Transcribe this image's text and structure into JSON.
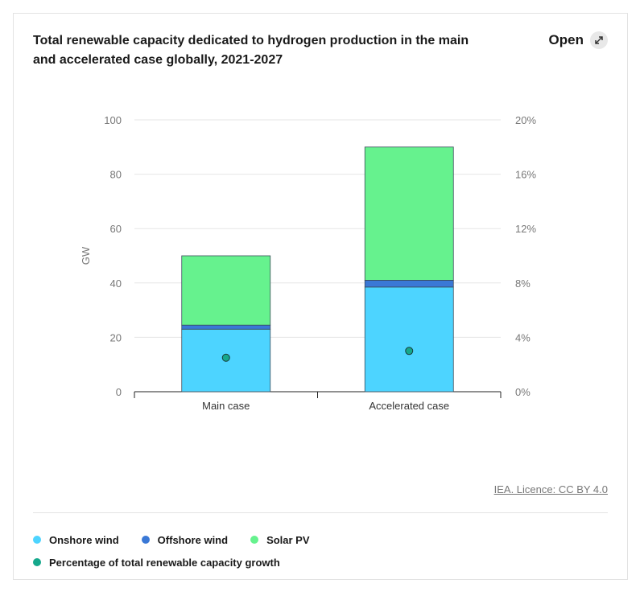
{
  "header": {
    "title": "Total renewable capacity dedicated to hydrogen production in the main and accelerated case globally, 2021-2027",
    "open_label": "Open"
  },
  "footer": {
    "licence": "IEA. Licence: CC BY 4.0"
  },
  "legend": {
    "items": [
      {
        "label": "Onshore wind",
        "color": "#4dd4ff"
      },
      {
        "label": "Offshore wind",
        "color": "#3a78d6"
      },
      {
        "label": "Solar PV",
        "color": "#66f28e"
      },
      {
        "label": "Percentage of total renewable capacity growth",
        "color": "#15a88c"
      }
    ]
  },
  "chart_data": {
    "type": "bar",
    "stacked": true,
    "categories": [
      "Main case",
      "Accelerated case"
    ],
    "series": [
      {
        "name": "Onshore wind",
        "values": [
          23,
          38.5
        ],
        "color": "#4dd4ff"
      },
      {
        "name": "Offshore wind",
        "values": [
          1.5,
          2.5
        ],
        "color": "#3a78d6"
      },
      {
        "name": "Solar PV",
        "values": [
          25.5,
          49
        ],
        "color": "#66f28e"
      }
    ],
    "secondary_series": {
      "name": "Percentage of total renewable capacity growth",
      "type": "scatter",
      "values": [
        2.5,
        3.0
      ],
      "color": "#15a88c"
    },
    "ylabel": "GW",
    "ylim": [
      0,
      100
    ],
    "yticks": [
      "0",
      "20",
      "40",
      "60",
      "80",
      "100"
    ],
    "y2lim": [
      0,
      20
    ],
    "y2ticks": [
      "0%",
      "4%",
      "8%",
      "12%",
      "16%",
      "20%"
    ],
    "grid": true,
    "legend_position": "bottom"
  }
}
